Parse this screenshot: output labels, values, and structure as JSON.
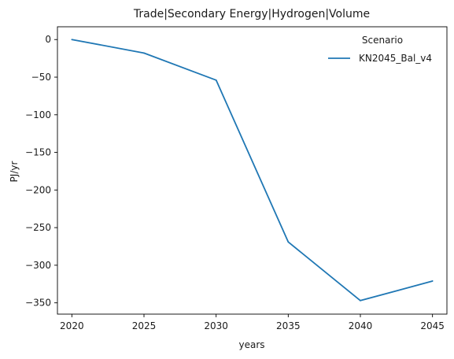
{
  "chart_data": {
    "type": "line",
    "title": "Trade|Secondary Energy|Hydrogen|Volume",
    "xlabel": "years",
    "ylabel": "PJ/yr",
    "xlim": [
      2019.0,
      2046.0
    ],
    "ylim": [
      -365.0,
      17.0
    ],
    "xticks": [
      2020,
      2025,
      2030,
      2035,
      2040,
      2045
    ],
    "yticks": [
      0,
      -50,
      -100,
      -150,
      -200,
      -250,
      -300,
      -350
    ],
    "x": [
      2020,
      2025,
      2030,
      2035,
      2040,
      2045
    ],
    "series": [
      {
        "name": "KN2045_Bal_v4",
        "values": [
          0,
          -18,
          -54,
          -269,
          -347,
          -321
        ],
        "color": "#1f77b4"
      }
    ],
    "legend": {
      "title": "Scenario",
      "placement": "top-right",
      "frame": false
    },
    "grid": false
  }
}
